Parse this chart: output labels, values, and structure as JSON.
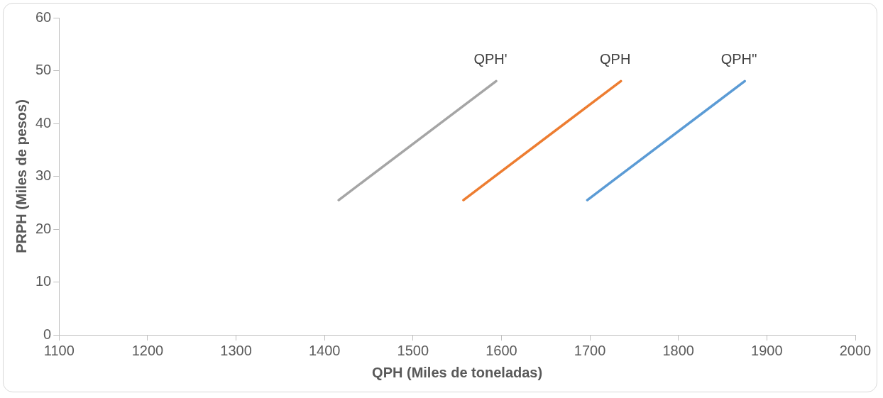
{
  "chart_data": {
    "type": "line",
    "xlabel": "QPH (Miles de toneladas)",
    "ylabel": "PRPH (Miles de pesos)",
    "xlim": [
      1100,
      2000
    ],
    "xticks": [
      1100,
      1200,
      1300,
      1400,
      1500,
      1600,
      1700,
      1800,
      1900,
      2000
    ],
    "ylim": [
      0,
      60
    ],
    "yticks": [
      0,
      10,
      20,
      30,
      40,
      50,
      60
    ],
    "grid": false,
    "legend": false,
    "marker": "none",
    "line_style": "solid",
    "series": [
      {
        "name": "QPH'",
        "color": "#a5a5a5",
        "x": [
          1416,
          1594
        ],
        "values": [
          25.5,
          48
        ]
      },
      {
        "name": "QPH",
        "color": "#ed7d31",
        "x": [
          1557,
          1735
        ],
        "values": [
          25.5,
          48
        ]
      },
      {
        "name": "QPH''",
        "color": "#5b9bd5",
        "x": [
          1697,
          1875
        ],
        "values": [
          25.5,
          48
        ]
      }
    ]
  }
}
